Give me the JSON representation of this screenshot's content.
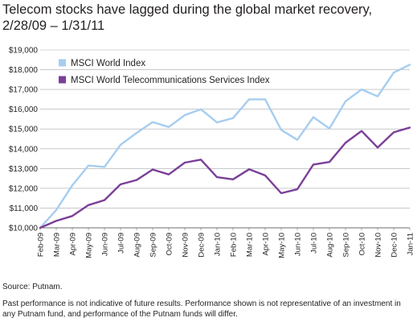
{
  "title": "Telecom stocks have lagged during the global market recovery, 2/28/09 – 1/31/11",
  "source": "Source: Putnam.",
  "disclaimer": "Past performance is not indicative of future results. Performance shown is not representative of an investment in any Putnam fund, and performance of the Putnam funds will differ.",
  "chart_data": {
    "type": "line",
    "x": [
      "Feb-09",
      "Mar-09",
      "Apr-09",
      "May-09",
      "Jun-09",
      "Jul-09",
      "Aug-09",
      "Sep-09",
      "Oct-09",
      "Nov-09",
      "Dec-09",
      "Jan-10",
      "Feb-10",
      "Mar-10",
      "Apr-10",
      "May-10",
      "Jun-10",
      "Jul-10",
      "Aug-10",
      "Sep-10",
      "Oct-10",
      "Nov-10",
      "Dec-10",
      "Jan-11"
    ],
    "yticks": [
      "$10,000",
      "$11,000",
      "$12,000",
      "$13,000",
      "$14,000",
      "$15,000",
      "$16,000",
      "$17,000",
      "$18,000",
      "$19,000"
    ],
    "ylim": [
      10000,
      19000
    ],
    "grid": true,
    "legend_position": "top-left",
    "series": [
      {
        "name": "MSCI World Index",
        "color": "#a6cdf0",
        "values": [
          10000,
          10900,
          12150,
          13150,
          13080,
          14200,
          14800,
          15350,
          15100,
          15700,
          16000,
          15330,
          15550,
          16500,
          16500,
          14950,
          14450,
          15600,
          15020,
          16400,
          17000,
          16650,
          17850,
          18250
        ]
      },
      {
        "name": "MSCI World Telecommunications Services Index",
        "color": "#7b3f98",
        "values": [
          10000,
          10350,
          10600,
          11150,
          11400,
          12200,
          12420,
          12950,
          12700,
          13300,
          13450,
          12560,
          12450,
          12960,
          12650,
          11750,
          11950,
          13200,
          13330,
          14300,
          14900,
          14060,
          14830,
          15070
        ]
      }
    ]
  }
}
